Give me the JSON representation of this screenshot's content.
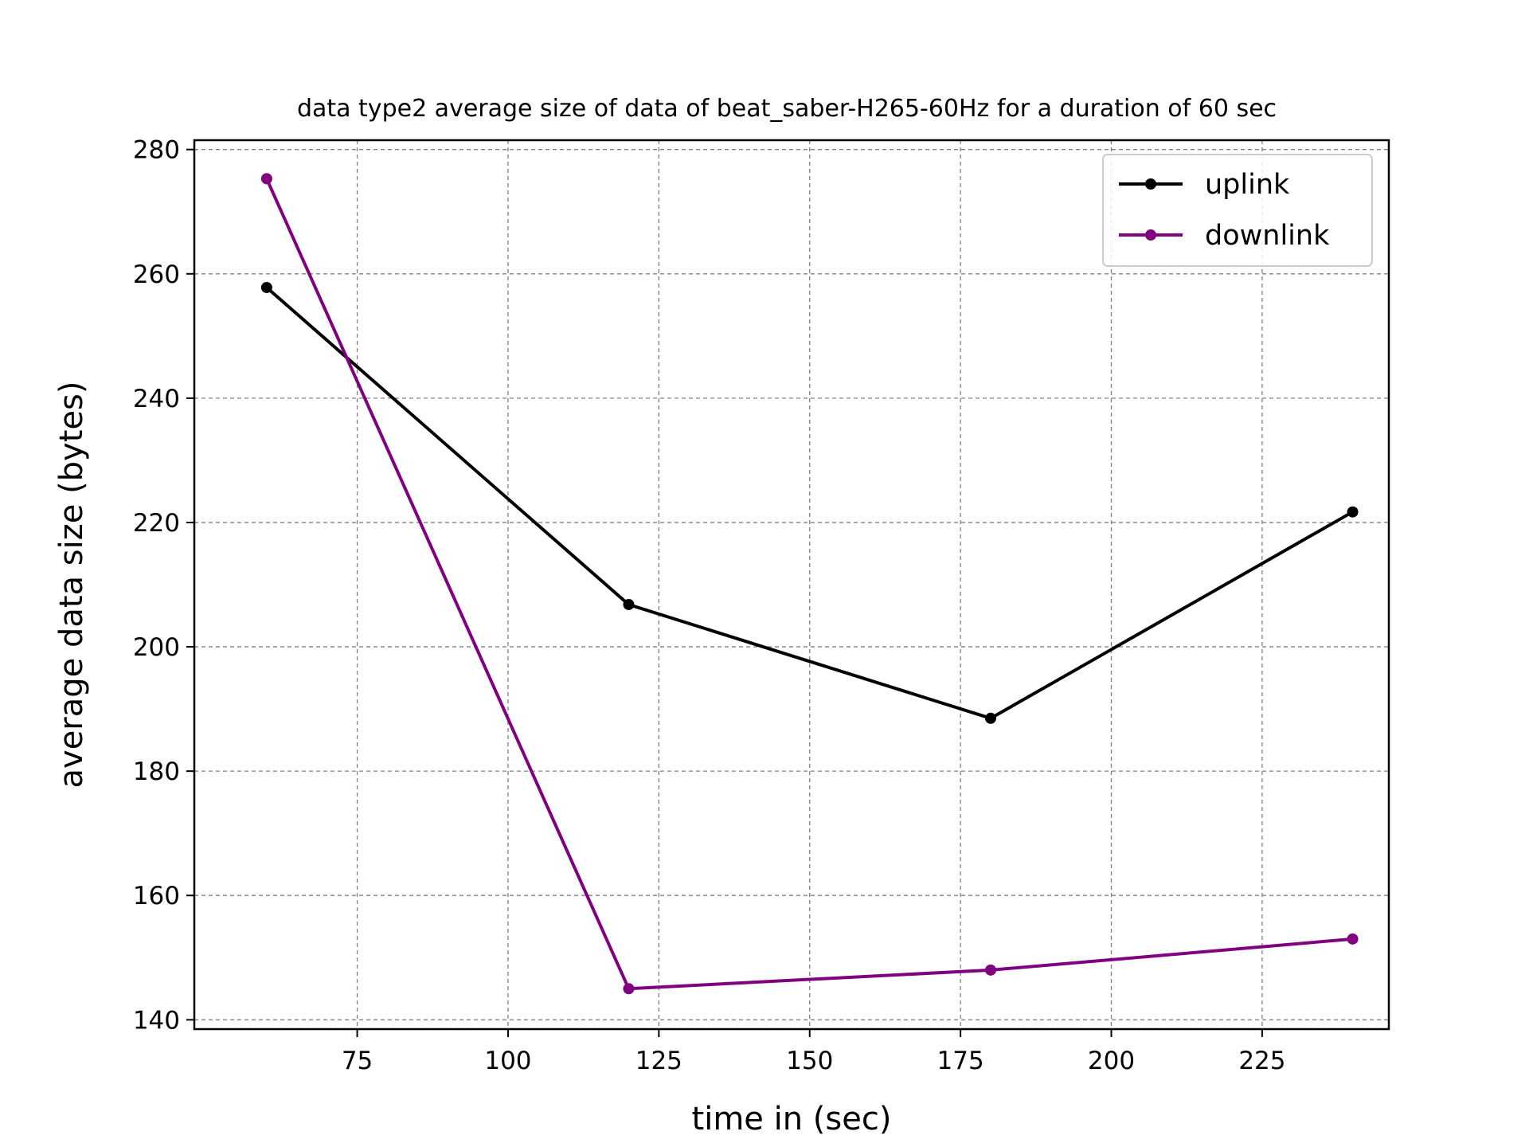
{
  "chart_data": {
    "type": "line",
    "title": "data type2 average size of data of beat_saber-H265-60Hz for a duration of 60 sec",
    "xlabel": "time in (sec)",
    "ylabel": "average data size (bytes)",
    "x": [
      60,
      120,
      180,
      240
    ],
    "xlim": [
      48,
      246
    ],
    "ylim": [
      138.5,
      281.5
    ],
    "xticks": [
      75,
      100,
      125,
      150,
      175,
      200,
      225
    ],
    "yticks": [
      140,
      160,
      180,
      200,
      220,
      240,
      260,
      280
    ],
    "grid": true,
    "legend": "top-right",
    "series": [
      {
        "name": "uplink",
        "color": "#000000",
        "values": [
          257.8,
          206.8,
          188.5,
          221.7
        ]
      },
      {
        "name": "downlink",
        "color": "#800080",
        "values": [
          275.3,
          145.0,
          148.0,
          153.0
        ]
      }
    ]
  }
}
